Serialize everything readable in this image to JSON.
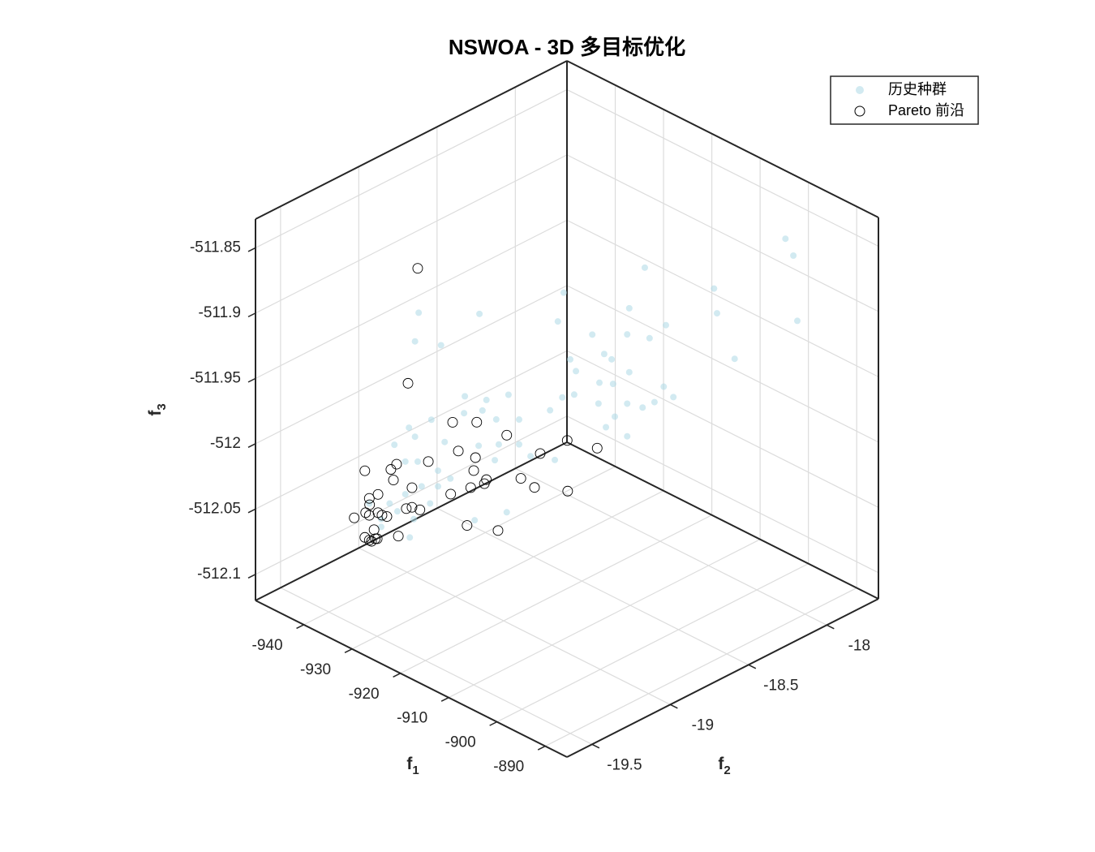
{
  "chart_data": {
    "type": "scatter3d",
    "title": "NSWOA - 3D 多目标优化",
    "xlabel": "f1",
    "ylabel": "f2",
    "zlabel": "f3",
    "xlim": [
      -950,
      -885.5
    ],
    "ylim": [
      -19.66,
      -17.67
    ],
    "zlim": [
      -512.12,
      -511.828
    ],
    "xticks": [
      -940,
      -930,
      -920,
      -910,
      -900,
      -890
    ],
    "yticks": [
      -19.5,
      -19,
      -18.5,
      -18
    ],
    "zticks": [
      -512.1,
      -512.05,
      -512,
      -511.95,
      -511.9,
      -511.85
    ],
    "grid": true,
    "legend": "northeast",
    "series": [
      {
        "name": "历史种群",
        "color": "#add8e6",
        "x": [
          -895.1,
          -894.3,
          -909.7,
          -918.1,
          -902.5,
          -911.3,
          -902.2,
          -933.1,
          -926.8,
          -918.7,
          -907.5,
          -893.9,
          -933.5,
          -930.8,
          -915.1,
          -911.5,
          -909.2,
          -913.9,
          -913.1,
          -900.4,
          -917.4,
          -916.8,
          -911.3,
          -914.4,
          -907.7,
          -906.7,
          -913.0,
          -908.7,
          -911.5,
          -914.5,
          -912.8,
          -909.9,
          -913.7,
          -911.5,
          -928.3,
          -923.8,
          -926.1,
          -917.0,
          -918.2,
          -926.5,
          -928.4,
          -925.1,
          -922.7,
          -919.5,
          -931.8,
          -934.1,
          -930.4,
          -933.5,
          -935.6,
          -926.9,
          -924.8,
          -922.7,
          -919.0,
          -925.2,
          -921.5,
          -934.5,
          -933.2,
          -931.1,
          -929.8,
          -932.8,
          -931.1,
          -934.5,
          -936.1,
          -935.3,
          -933.6,
          -931.9,
          -937.0,
          -934.0,
          -924.0,
          -927.3,
          -937.0,
          -938.2
        ],
        "y": [
          -17.968,
          -17.942,
          -18.416,
          -18.675,
          -18.196,
          -18.466,
          -18.186,
          -19.139,
          -18.945,
          -18.694,
          -18.349,
          -17.929,
          -19.15,
          -19.067,
          -18.585,
          -18.473,
          -18.401,
          -18.546,
          -18.523,
          -18.129,
          -18.655,
          -18.637,
          -18.466,
          -18.561,
          -18.357,
          -18.326,
          -18.517,
          -18.385,
          -18.473,
          -18.564,
          -18.512,
          -18.424,
          -18.541,
          -18.473,
          -18.992,
          -18.852,
          -18.922,
          -18.642,
          -18.681,
          -18.935,
          -18.994,
          -18.89,
          -18.818,
          -18.719,
          -19.098,
          -19.17,
          -19.056,
          -19.15,
          -19.217,
          -18.947,
          -18.883,
          -18.818,
          -18.704,
          -18.896,
          -18.782,
          -19.181,
          -19.142,
          -19.077,
          -19.038,
          -19.129,
          -19.077,
          -19.181,
          -19.232,
          -19.207,
          -19.155,
          -19.103,
          -19.258,
          -19.168,
          -18.857,
          -18.96,
          -19.258,
          -19.297
        ],
        "z": [
          -511.844,
          -511.857,
          -511.866,
          -511.885,
          -511.882,
          -511.897,
          -511.901,
          -511.9,
          -511.901,
          -511.907,
          -511.91,
          -511.907,
          -511.922,
          -511.925,
          -511.917,
          -511.917,
          -511.92,
          -511.932,
          -511.936,
          -511.936,
          -511.936,
          -511.945,
          -511.946,
          -511.954,
          -511.957,
          -511.965,
          -511.955,
          -511.969,
          -511.97,
          -511.97,
          -511.98,
          -511.973,
          -511.988,
          -511.995,
          -511.964,
          -511.963,
          -511.967,
          -511.963,
          -511.965,
          -511.975,
          -511.977,
          -511.982,
          -511.982,
          -511.975,
          -511.982,
          -511.988,
          -511.999,
          -511.995,
          -512.001,
          -512.002,
          -512.001,
          -512.001,
          -512.013,
          -512.013,
          -512.01,
          -512.014,
          -512.014,
          -512.021,
          -512.027,
          -512.033,
          -512.033,
          -512.039,
          -512.046,
          -512.052,
          -512.058,
          -512.046,
          -512.064,
          -512.072,
          -512.053,
          -512.059,
          -512.058,
          -512.046
        ]
      },
      {
        "name": "Pareto 前沿",
        "color": "#000000",
        "x": [
          -933.2,
          -934.2,
          -929.6,
          -927.1,
          -924.0,
          -929.0,
          -920.5,
          -917.7,
          -914.6,
          -932.1,
          -927.2,
          -936.0,
          -935.4,
          -938.7,
          -935.7,
          -927.4,
          -926.1,
          -922.5,
          -921.1,
          -917.7,
          -933.8,
          -929.8,
          -927.7,
          -926.3,
          -938.2,
          -938.2,
          -937.3,
          -939.8,
          -938.6,
          -938.2,
          -937.3,
          -936.9,
          -936.4,
          -934.4,
          -933.8,
          -933.0,
          -937.7,
          -938.7,
          -938.0,
          -937.6,
          -938.2,
          -935.2,
          -928.1,
          -924.9,
          -937.4
        ],
        "y": [
          -19.142,
          -19.173,
          -19.03,
          -18.953,
          -18.857,
          -19.012,
          -18.751,
          -18.665,
          -18.569,
          -19.108,
          -18.958,
          -19.227,
          -19.209,
          -19.31,
          -19.22,
          -18.963,
          -18.922,
          -18.813,
          -18.769,
          -18.662,
          -19.16,
          -19.036,
          -18.973,
          -18.929,
          -19.297,
          -19.295,
          -19.269,
          -19.344,
          -19.308,
          -19.297,
          -19.269,
          -19.256,
          -19.24,
          -19.178,
          -19.16,
          -19.134,
          -19.282,
          -19.31,
          -19.289,
          -19.277,
          -19.297,
          -19.204,
          -18.984,
          -18.885,
          -19.271
        ],
        "z": [
          -511.866,
          -511.954,
          -511.984,
          -511.984,
          -511.994,
          -512.006,
          -512.008,
          -511.998,
          -512.004,
          -512.014,
          -512.011,
          -512.02,
          -512.016,
          -512.021,
          -512.028,
          -512.021,
          -512.028,
          -512.027,
          -512.034,
          -512.037,
          -512.034,
          -512.039,
          -512.034,
          -512.031,
          -512.042,
          -512.047,
          -512.039,
          -512.057,
          -512.053,
          -512.055,
          -512.053,
          -512.055,
          -512.056,
          -512.05,
          -512.049,
          -512.051,
          -512.066,
          -512.072,
          -512.075,
          -512.073,
          -512.074,
          -512.071,
          -512.063,
          -512.067,
          -512.073
        ]
      }
    ]
  }
}
